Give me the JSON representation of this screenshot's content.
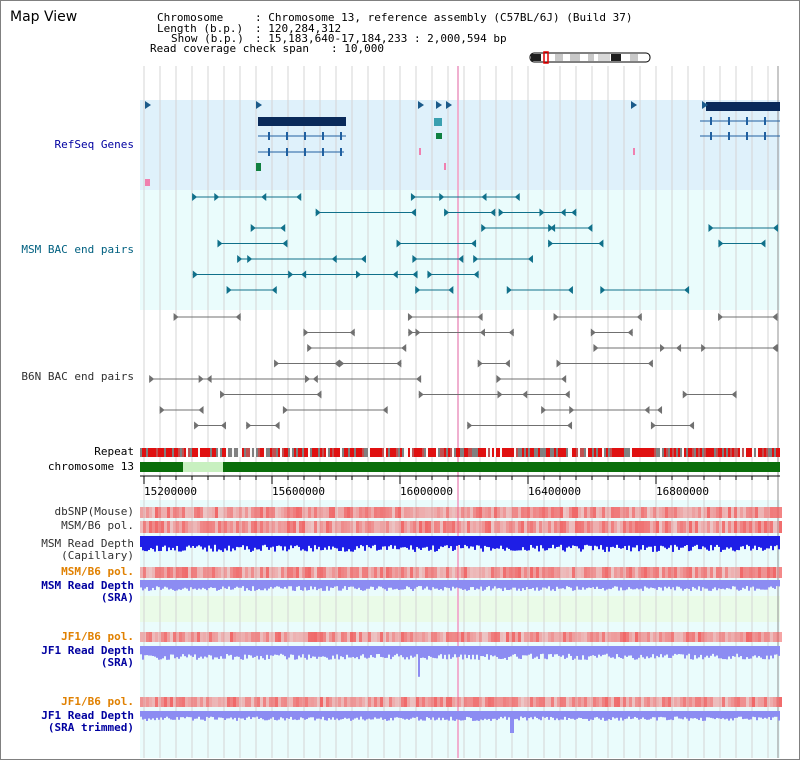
{
  "view": {
    "title": "Map View",
    "info": {
      "chromosome_label": "Chromosome",
      "chromosome_value": ": Chromosome 13, reference assembly (C57BL/6J) (Build 37)",
      "length_label": "Length (b.p.)",
      "length_value": ": 120,284,312",
      "show_label": "Show (b.p.)",
      "show_value": ": 15,183,640-17,184,233 : 2,000,594 bp",
      "coverage_label": "Read coverage check span",
      "coverage_value": ": 10,000"
    }
  },
  "tracks": {
    "refseq": "RefSeq Genes",
    "msm_bac": "MSM BAC end pairs",
    "b6n_bac": "B6N BAC end pairs",
    "repeat": "Repeat",
    "chromosome": "chromosome 13",
    "dbsnp": "dbSNP(Mouse)",
    "msm_b6_pol_1": "MSM/B6 pol.",
    "msm_depth_cap_1": "MSM Read Depth",
    "msm_depth_cap_2": "(Capillary)",
    "msm_b6_pol_2": "MSM/B6 pol.",
    "msm_depth_sra_1": "MSM Read Depth",
    "msm_depth_sra_2": "(SRA)",
    "jf1_b6_pol_1": "JF1/B6 pol.",
    "jf1_depth_sra_1": "JF1 Read Depth",
    "jf1_depth_sra_2": "(SRA)",
    "jf1_b6_pol_2": "JF1/B6 pol.",
    "jf1_depth_trim_1": "JF1 Read Depth",
    "jf1_depth_trim_2": "(SRA trimmed)"
  },
  "axis": {
    "ticks": [
      "15200000",
      "15600000",
      "16000000",
      "16400000",
      "16800000"
    ]
  },
  "colors": {
    "refseq_bg": "#dff1fb",
    "msm_bg": "#eafcfc",
    "depth_blue": "#1e1ee6",
    "depth_lavender": "#8c8cf2",
    "pol_red": "#f06060",
    "chrom_green": "#0a6e0a"
  }
}
